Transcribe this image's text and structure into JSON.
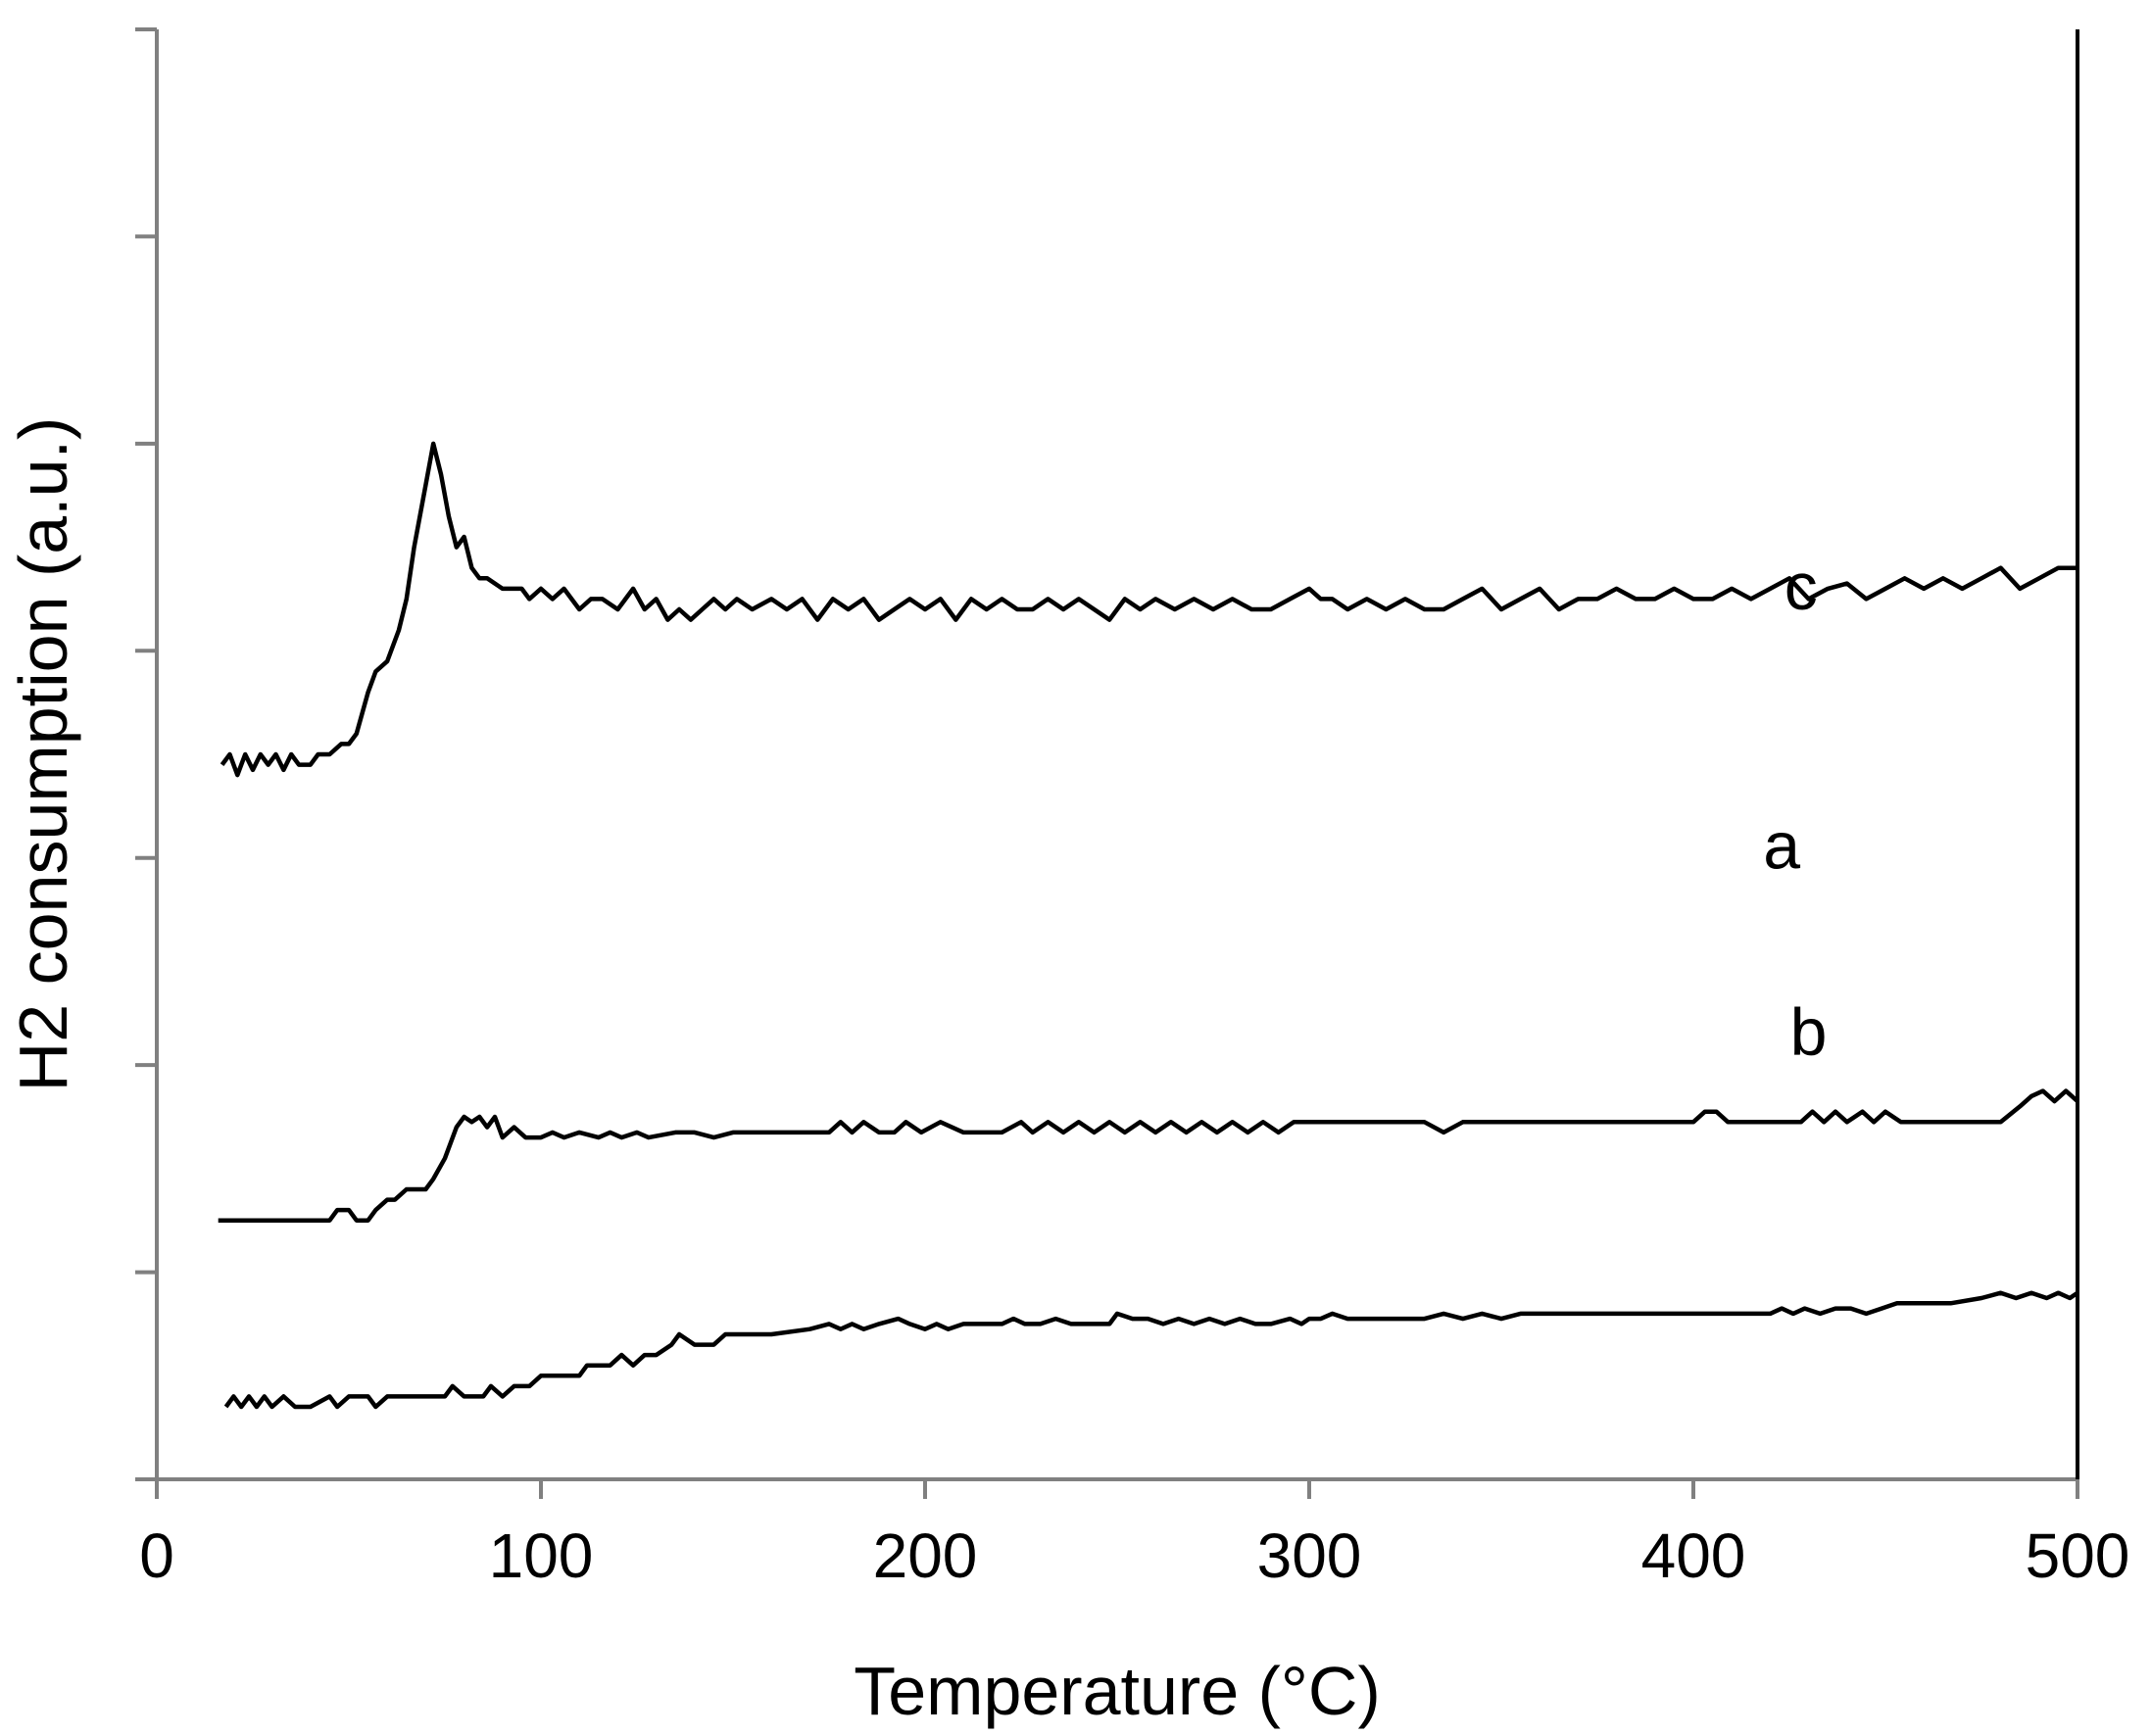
{
  "chart_data": {
    "type": "line",
    "xlabel": "Temperature (°C)",
    "ylabel": "H2 consumption (a.u.)",
    "xlim": [
      0,
      500
    ],
    "ylim": [
      0,
      14
    ],
    "x_ticks": [
      "0",
      "100",
      "200",
      "300",
      "400",
      "500"
    ],
    "y_ticks_count": 8,
    "y_tick_labels_shown": false,
    "grid": false,
    "legend": "none",
    "line_color": "#000000",
    "series": [
      {
        "name": "a",
        "label_at": [
          423,
          5.9
        ],
        "x": [
          18,
          20,
          22,
          24,
          26,
          28,
          30,
          33,
          36,
          40,
          45,
          47,
          50,
          55,
          57,
          60,
          62,
          65,
          70,
          75,
          77,
          80,
          85,
          87,
          90,
          93,
          97,
          100,
          105,
          110,
          112,
          115,
          118,
          121,
          124,
          127,
          130,
          134,
          136,
          140,
          145,
          148,
          152,
          160,
          170,
          175,
          178,
          181,
          184,
          188,
          193,
          196,
          200,
          203,
          206,
          210,
          215,
          220,
          223,
          226,
          230,
          234,
          238,
          242,
          248,
          250,
          254,
          258,
          262,
          266,
          270,
          274,
          278,
          282,
          286,
          290,
          295,
          298,
          300,
          303,
          306,
          310,
          320,
          330,
          335,
          340,
          345,
          350,
          355,
          358,
          365,
          380,
          400,
          420,
          423,
          426,
          429,
          433,
          437,
          441,
          445,
          449,
          453,
          460,
          467,
          475,
          480,
          484,
          488,
          492,
          495,
          498,
          500
        ],
        "y": [
          0.7,
          0.8,
          0.7,
          0.8,
          0.7,
          0.8,
          0.7,
          0.8,
          0.7,
          0.7,
          0.8,
          0.7,
          0.8,
          0.8,
          0.7,
          0.8,
          0.8,
          0.8,
          0.8,
          0.8,
          0.9,
          0.8,
          0.8,
          0.9,
          0.8,
          0.9,
          0.9,
          1.0,
          1.0,
          1.0,
          1.1,
          1.1,
          1.1,
          1.2,
          1.1,
          1.2,
          1.2,
          1.3,
          1.4,
          1.3,
          1.3,
          1.4,
          1.4,
          1.4,
          1.45,
          1.5,
          1.45,
          1.5,
          1.45,
          1.5,
          1.55,
          1.5,
          1.45,
          1.5,
          1.45,
          1.5,
          1.5,
          1.5,
          1.55,
          1.5,
          1.5,
          1.55,
          1.5,
          1.5,
          1.5,
          1.6,
          1.55,
          1.55,
          1.5,
          1.55,
          1.5,
          1.55,
          1.5,
          1.55,
          1.5,
          1.5,
          1.55,
          1.5,
          1.55,
          1.55,
          1.6,
          1.55,
          1.55,
          1.55,
          1.6,
          1.55,
          1.6,
          1.55,
          1.6,
          1.6,
          1.6,
          1.6,
          1.6,
          1.6,
          1.65,
          1.6,
          1.65,
          1.6,
          1.65,
          1.65,
          1.6,
          1.65,
          1.7,
          1.7,
          1.7,
          1.75,
          1.8,
          1.75,
          1.8,
          1.75,
          1.8,
          1.75,
          1.8
        ]
      },
      {
        "name": "b",
        "label_at": [
          430,
          4.1
        ],
        "x": [
          16,
          30,
          45,
          47,
          50,
          52,
          55,
          57,
          60,
          62,
          65,
          70,
          72,
          75,
          78,
          80,
          82,
          84,
          86,
          88,
          90,
          93,
          96,
          100,
          103,
          106,
          110,
          115,
          118,
          121,
          125,
          128,
          135,
          140,
          145,
          150,
          160,
          170,
          175,
          178,
          181,
          184,
          188,
          192,
          195,
          199,
          204,
          210,
          220,
          225,
          228,
          232,
          236,
          240,
          244,
          248,
          252,
          256,
          260,
          264,
          268,
          272,
          276,
          280,
          284,
          288,
          292,
          296,
          300,
          310,
          320,
          330,
          335,
          340,
          350,
          370,
          390,
          400,
          403,
          406,
          409,
          412,
          420,
          428,
          431,
          434,
          437,
          440,
          444,
          447,
          450,
          454,
          460,
          470,
          480,
          485,
          488,
          491,
          494,
          497,
          500
        ],
        "y": [
          2.5,
          2.5,
          2.5,
          2.6,
          2.6,
          2.5,
          2.5,
          2.6,
          2.7,
          2.7,
          2.8,
          2.8,
          2.9,
          3.1,
          3.4,
          3.5,
          3.45,
          3.5,
          3.4,
          3.5,
          3.3,
          3.4,
          3.3,
          3.3,
          3.35,
          3.3,
          3.35,
          3.3,
          3.35,
          3.3,
          3.35,
          3.3,
          3.35,
          3.35,
          3.3,
          3.35,
          3.35,
          3.35,
          3.35,
          3.45,
          3.35,
          3.45,
          3.35,
          3.35,
          3.45,
          3.35,
          3.45,
          3.35,
          3.35,
          3.45,
          3.35,
          3.45,
          3.35,
          3.45,
          3.35,
          3.45,
          3.35,
          3.45,
          3.35,
          3.45,
          3.35,
          3.45,
          3.35,
          3.45,
          3.35,
          3.45,
          3.35,
          3.45,
          3.45,
          3.45,
          3.45,
          3.45,
          3.35,
          3.45,
          3.45,
          3.45,
          3.45,
          3.45,
          3.55,
          3.55,
          3.45,
          3.45,
          3.45,
          3.45,
          3.55,
          3.45,
          3.55,
          3.45,
          3.55,
          3.45,
          3.55,
          3.45,
          3.45,
          3.45,
          3.45,
          3.6,
          3.7,
          3.75,
          3.65,
          3.75,
          3.65
        ]
      },
      {
        "name": "c",
        "label_at": [
          428,
          8.4
        ],
        "x": [
          17,
          19,
          21,
          23,
          25,
          27,
          29,
          31,
          33,
          35,
          37,
          40,
          42,
          45,
          48,
          50,
          52,
          55,
          57,
          60,
          63,
          65,
          67,
          70,
          72,
          74,
          76,
          78,
          80,
          82,
          84,
          86,
          90,
          95,
          97,
          100,
          103,
          106,
          110,
          113,
          116,
          120,
          124,
          127,
          130,
          133,
          136,
          139,
          142,
          145,
          148,
          151,
          155,
          160,
          164,
          168,
          172,
          176,
          180,
          184,
          188,
          192,
          196,
          200,
          204,
          208,
          212,
          216,
          220,
          224,
          228,
          232,
          236,
          240,
          244,
          248,
          252,
          256,
          260,
          265,
          270,
          275,
          280,
          285,
          290,
          295,
          300,
          303,
          306,
          310,
          315,
          320,
          325,
          330,
          335,
          340,
          345,
          350,
          355,
          360,
          365,
          370,
          375,
          380,
          385,
          390,
          395,
          400,
          405,
          410,
          415,
          420,
          425,
          430,
          435,
          440,
          445,
          450,
          455,
          460,
          465,
          470,
          475,
          480,
          485,
          490,
          495,
          500
        ],
        "y": [
          6.9,
          7.0,
          6.8,
          7.0,
          6.85,
          7.0,
          6.9,
          7.0,
          6.85,
          7.0,
          6.9,
          6.9,
          7.0,
          7.0,
          7.1,
          7.1,
          7.2,
          7.6,
          7.8,
          7.9,
          8.2,
          8.5,
          9.0,
          9.6,
          10.0,
          9.7,
          9.3,
          9.0,
          9.1,
          8.8,
          8.7,
          8.7,
          8.6,
          8.6,
          8.5,
          8.6,
          8.5,
          8.6,
          8.4,
          8.5,
          8.5,
          8.4,
          8.6,
          8.4,
          8.5,
          8.3,
          8.4,
          8.3,
          8.4,
          8.5,
          8.4,
          8.5,
          8.4,
          8.5,
          8.4,
          8.5,
          8.3,
          8.5,
          8.4,
          8.5,
          8.3,
          8.4,
          8.5,
          8.4,
          8.5,
          8.3,
          8.5,
          8.4,
          8.5,
          8.4,
          8.4,
          8.5,
          8.4,
          8.5,
          8.4,
          8.3,
          8.5,
          8.4,
          8.5,
          8.4,
          8.5,
          8.4,
          8.5,
          8.4,
          8.4,
          8.5,
          8.6,
          8.5,
          8.5,
          8.4,
          8.5,
          8.4,
          8.5,
          8.4,
          8.4,
          8.5,
          8.6,
          8.4,
          8.5,
          8.6,
          8.4,
          8.5,
          8.5,
          8.6,
          8.5,
          8.5,
          8.6,
          8.5,
          8.5,
          8.6,
          8.5,
          8.6,
          8.7,
          8.5,
          8.6,
          8.65,
          8.5,
          8.6,
          8.7,
          8.6,
          8.7,
          8.6,
          8.7,
          8.8,
          8.6,
          8.7,
          8.8,
          8.8
        ]
      }
    ]
  }
}
